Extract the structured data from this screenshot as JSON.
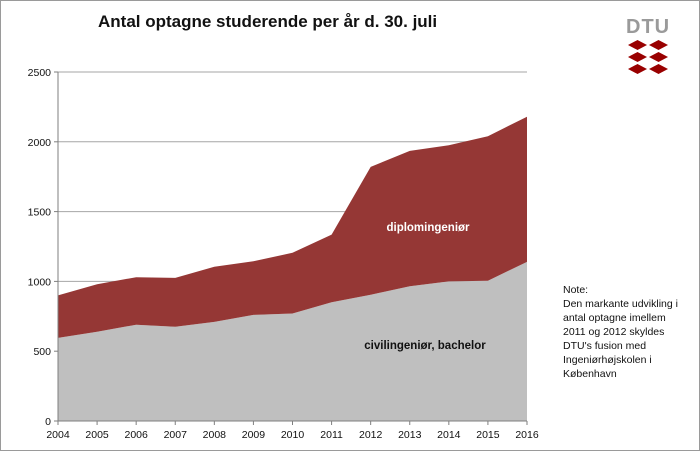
{
  "title": "Antal optagne studerende per år d. 30. juli",
  "logo": {
    "text": "DTU",
    "accent_color": "#990000",
    "text_color": "#9a9a9a"
  },
  "note": {
    "heading": "Note:",
    "lines": [
      "Den markante udvikling i",
      "antal optagne imellem",
      "2011 og 2012 skyldes",
      "DTU's fusion med",
      "Ingeniørhøjskolen i",
      "København"
    ]
  },
  "chart_data": {
    "type": "area",
    "stacked": true,
    "title": "Antal optagne studerende per år d. 30. juli",
    "x": [
      "2004",
      "2005",
      "2006",
      "2007",
      "2008",
      "2009",
      "2010",
      "2011",
      "2012",
      "2013",
      "2014",
      "2015",
      "2016"
    ],
    "series": [
      {
        "name": "civilingeniør, bachelor",
        "color": "#bfbfbf",
        "values": [
          595,
          640,
          690,
          675,
          710,
          760,
          770,
          850,
          905,
          965,
          1000,
          1005,
          1140
        ]
      },
      {
        "name": "diplomingeniør",
        "color": "#953735",
        "values": [
          305,
          340,
          340,
          350,
          395,
          385,
          435,
          485,
          915,
          970,
          975,
          1035,
          1040
        ]
      }
    ],
    "yticks": [
      "0",
      "500",
      "1000",
      "1500",
      "2000",
      "2500"
    ],
    "ylim": [
      0,
      2500
    ],
    "grid": "horizontal",
    "legend": "labels inside areas"
  }
}
